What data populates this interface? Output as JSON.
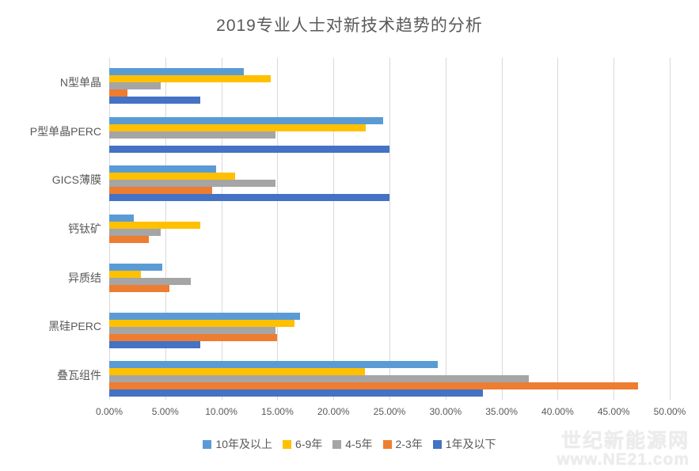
{
  "title": "2019专业人士对新技术趋势的分析",
  "colors": {
    "text": "#595959",
    "gridline": "#D9D9D9",
    "background": "#FFFFFF",
    "watermark": "#ECECEC"
  },
  "chart_data": {
    "type": "bar",
    "orientation": "horizontal",
    "title": "2019专业人士对新技术趋势的分析",
    "categories": [
      "N型单晶",
      "P型单晶PERC",
      "GICS薄膜",
      "钙钛矿",
      "异质结",
      "黑硅PERC",
      "叠瓦组件"
    ],
    "series": [
      {
        "name": "10年及以上",
        "color": "#5B9BD5",
        "values": [
          12.0,
          24.4,
          9.5,
          2.2,
          4.7,
          17.0,
          29.3
        ]
      },
      {
        "name": "6-9年",
        "color": "#FFC000",
        "values": [
          14.4,
          22.9,
          11.2,
          8.1,
          2.8,
          16.5,
          22.8
        ]
      },
      {
        "name": "4-5年",
        "color": "#A5A5A5",
        "values": [
          4.6,
          14.8,
          14.8,
          4.6,
          7.3,
          14.8,
          37.4
        ]
      },
      {
        "name": "2-3年",
        "color": "#ED7D31",
        "values": [
          1.6,
          0,
          9.2,
          3.5,
          5.4,
          15.0,
          47.2
        ]
      },
      {
        "name": "1年及以下",
        "color": "#4472C4",
        "values": [
          8.1,
          25.0,
          25.0,
          0,
          0,
          8.1,
          33.3
        ]
      }
    ],
    "x_ticks": [
      "0.00%",
      "5.00%",
      "10.00%",
      "15.00%",
      "20.00%",
      "25.00%",
      "30.00%",
      "35.00%",
      "40.00%",
      "45.00%",
      "50.00%"
    ],
    "xlim": [
      0,
      50
    ],
    "xlabel": "",
    "ylabel": "",
    "grid": true,
    "legend_position": "bottom"
  },
  "watermark": {
    "line1": "世纪新能源网",
    "line2": "www.NE21.com"
  }
}
